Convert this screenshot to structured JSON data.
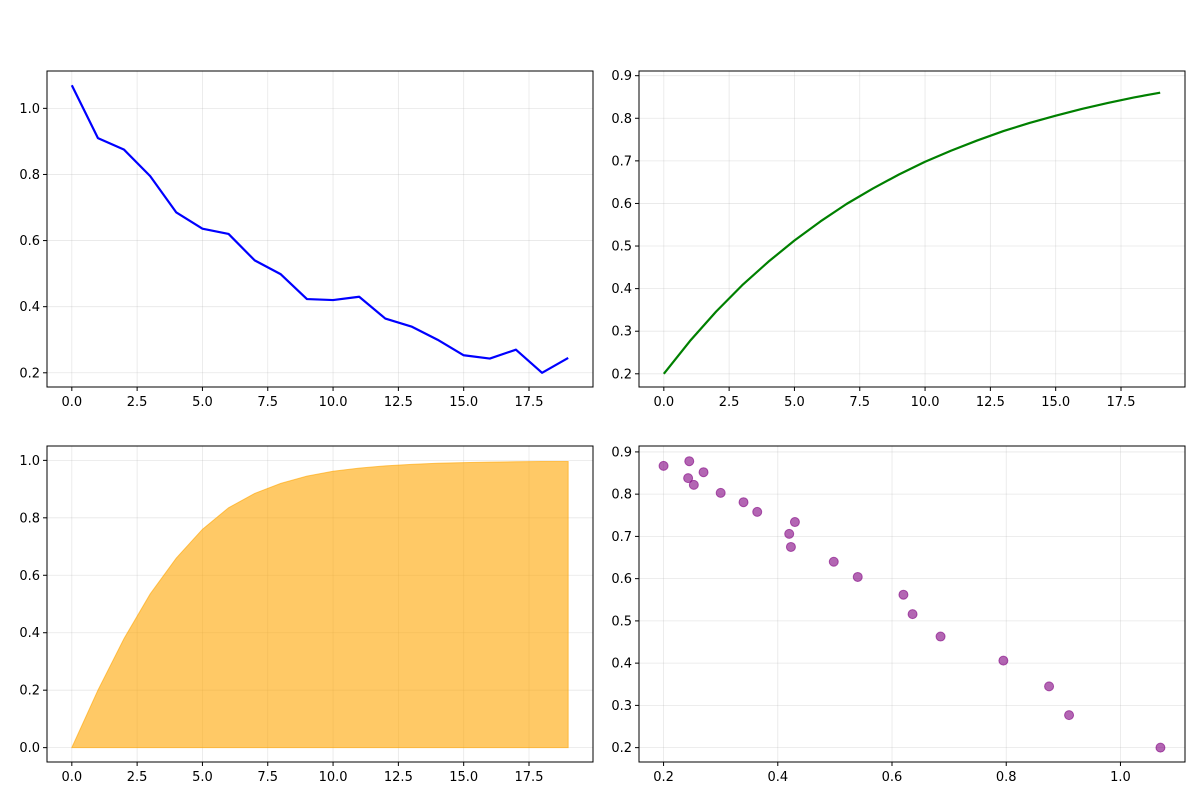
{
  "figure": {
    "suptitle": ""
  },
  "chart_data": [
    {
      "type": "line",
      "title": "",
      "xlabel": "",
      "ylabel": "",
      "grid": true,
      "color": "#0000ff",
      "x": [
        0,
        1,
        2,
        3,
        4,
        5,
        6,
        7,
        8,
        9,
        10,
        11,
        12,
        13,
        14,
        15,
        16,
        17,
        18,
        19
      ],
      "series": [
        {
          "name": "",
          "values": [
            1.07,
            0.91,
            0.875,
            0.795,
            0.685,
            0.636,
            0.62,
            0.54,
            0.498,
            0.423,
            0.42,
            0.43,
            0.364,
            0.34,
            0.3,
            0.253,
            0.243,
            0.27,
            0.2,
            0.245
          ]
        }
      ],
      "xlim": [
        -0.95,
        19.95
      ],
      "ylim": [
        0.157,
        1.113
      ],
      "xticks": [
        0,
        2.5,
        5,
        7.5,
        10,
        12.5,
        15,
        17.5
      ],
      "xtick_labels": [
        "0.0",
        "2.5",
        "5.0",
        "7.5",
        "10.0",
        "12.5",
        "15.0",
        "17.5"
      ],
      "yticks": [
        0.2,
        0.4,
        0.6,
        0.8,
        1.0
      ],
      "ytick_labels": [
        "0.2",
        "0.4",
        "0.6",
        "0.8",
        "1.0"
      ]
    },
    {
      "type": "line",
      "title": "",
      "xlabel": "",
      "ylabel": "",
      "grid": true,
      "color": "#008000",
      "x": [
        0,
        1,
        2,
        3,
        4,
        5,
        6,
        7,
        8,
        9,
        10,
        11,
        12,
        13,
        14,
        15,
        16,
        17,
        18,
        19
      ],
      "series": [
        {
          "name": "",
          "values": [
            0.2,
            0.277,
            0.346,
            0.408,
            0.463,
            0.513,
            0.558,
            0.599,
            0.635,
            0.668,
            0.698,
            0.724,
            0.748,
            0.77,
            0.789,
            0.806,
            0.822,
            0.836,
            0.849,
            0.86
          ]
        }
      ],
      "xlim": [
        -0.95,
        19.95
      ],
      "ylim": [
        0.169,
        0.911
      ],
      "xticks": [
        0,
        2.5,
        5,
        7.5,
        10,
        12.5,
        15,
        17.5
      ],
      "xtick_labels": [
        "0.0",
        "2.5",
        "5.0",
        "7.5",
        "10.0",
        "12.5",
        "15.0",
        "17.5"
      ],
      "yticks": [
        0.2,
        0.3,
        0.4,
        0.5,
        0.6,
        0.7,
        0.8,
        0.9
      ],
      "ytick_labels": [
        "0.2",
        "0.3",
        "0.4",
        "0.5",
        "0.6",
        "0.7",
        "0.8",
        "0.9"
      ]
    },
    {
      "type": "area",
      "title": "",
      "xlabel": "",
      "ylabel": "",
      "grid": true,
      "color": "#ffa500",
      "alpha": 0.6,
      "x": [
        0,
        1,
        2,
        3,
        4,
        5,
        6,
        7,
        8,
        9,
        10,
        11,
        12,
        13,
        14,
        15,
        16,
        17,
        18,
        19
      ],
      "series": [
        {
          "name": "",
          "values": [
            0.0,
            0.2,
            0.38,
            0.535,
            0.66,
            0.76,
            0.835,
            0.885,
            0.92,
            0.945,
            0.962,
            0.973,
            0.981,
            0.986,
            0.99,
            0.992,
            0.994,
            0.995,
            0.996,
            0.996
          ]
        }
      ],
      "xlim": [
        -0.95,
        19.95
      ],
      "ylim": [
        -0.05,
        1.05
      ],
      "xticks": [
        0,
        2.5,
        5,
        7.5,
        10,
        12.5,
        15,
        17.5
      ],
      "xtick_labels": [
        "0.0",
        "2.5",
        "5.0",
        "7.5",
        "10.0",
        "12.5",
        "15.0",
        "17.5"
      ],
      "yticks": [
        0.0,
        0.2,
        0.4,
        0.6,
        0.8,
        1.0
      ],
      "ytick_labels": [
        "0.0",
        "0.2",
        "0.4",
        "0.6",
        "0.8",
        "1.0"
      ]
    },
    {
      "type": "scatter",
      "title": "",
      "xlabel": "",
      "ylabel": "",
      "grid": true,
      "color": "#800080",
      "alpha": 0.6,
      "points": [
        [
          0.2,
          0.867
        ],
        [
          0.245,
          0.878
        ],
        [
          0.243,
          0.838
        ],
        [
          0.253,
          0.822
        ],
        [
          0.27,
          0.852
        ],
        [
          0.3,
          0.803
        ],
        [
          0.34,
          0.781
        ],
        [
          0.364,
          0.758
        ],
        [
          0.42,
          0.706
        ],
        [
          0.43,
          0.734
        ],
        [
          0.423,
          0.675
        ],
        [
          0.498,
          0.64
        ],
        [
          0.54,
          0.604
        ],
        [
          0.62,
          0.562
        ],
        [
          0.636,
          0.516
        ],
        [
          0.685,
          0.463
        ],
        [
          0.795,
          0.406
        ],
        [
          0.875,
          0.345
        ],
        [
          0.91,
          0.277
        ],
        [
          1.07,
          0.2
        ]
      ],
      "xlim": [
        0.157,
        1.113
      ],
      "ylim": [
        0.166,
        0.914
      ],
      "xticks": [
        0.2,
        0.4,
        0.6,
        0.8,
        1.0
      ],
      "xtick_labels": [
        "0.2",
        "0.4",
        "0.6",
        "0.8",
        "1.0"
      ],
      "yticks": [
        0.2,
        0.3,
        0.4,
        0.5,
        0.6,
        0.7,
        0.8,
        0.9
      ],
      "ytick_labels": [
        "0.2",
        "0.3",
        "0.4",
        "0.5",
        "0.6",
        "0.7",
        "0.8",
        "0.9"
      ]
    }
  ]
}
